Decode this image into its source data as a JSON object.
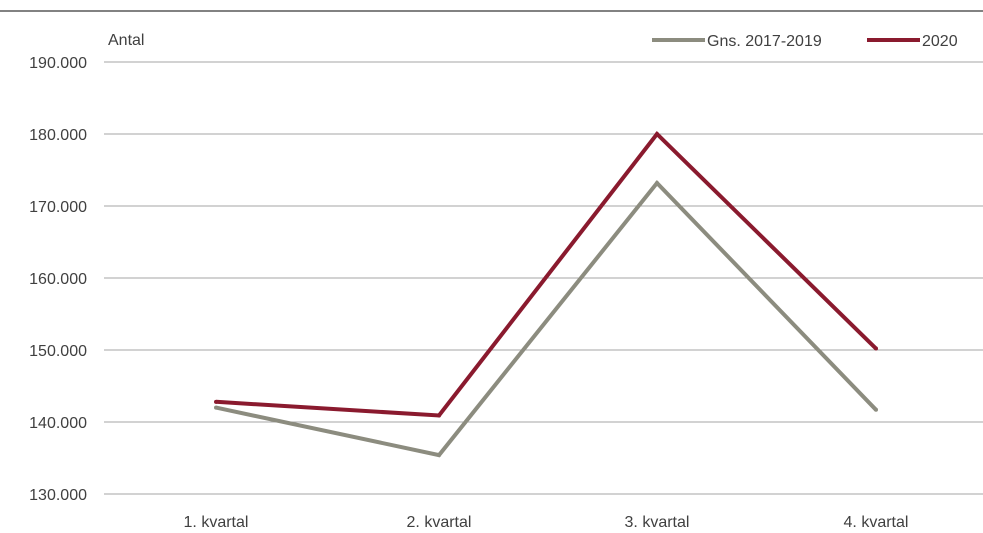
{
  "chart_data": {
    "type": "line",
    "title": "",
    "xlabel": "",
    "ylabel": "Antal",
    "categories": [
      "1. kvartal",
      "2. kvartal",
      "3. kvartal",
      "4. kvartal"
    ],
    "y_ticks": [
      "130.000",
      "140.000",
      "150.000",
      "160.000",
      "170.000",
      "180.000",
      "190.000"
    ],
    "ylim": [
      130000,
      190000
    ],
    "grid": true,
    "legend_position": "top-right",
    "series": [
      {
        "name": "Gns. 2017-2019",
        "color": "#8c8c7f",
        "values": [
          142000,
          135400,
          173200,
          141700
        ]
      },
      {
        "name": "2020",
        "color": "#8a1a2e",
        "values": [
          142800,
          140900,
          180000,
          150200
        ]
      }
    ]
  }
}
